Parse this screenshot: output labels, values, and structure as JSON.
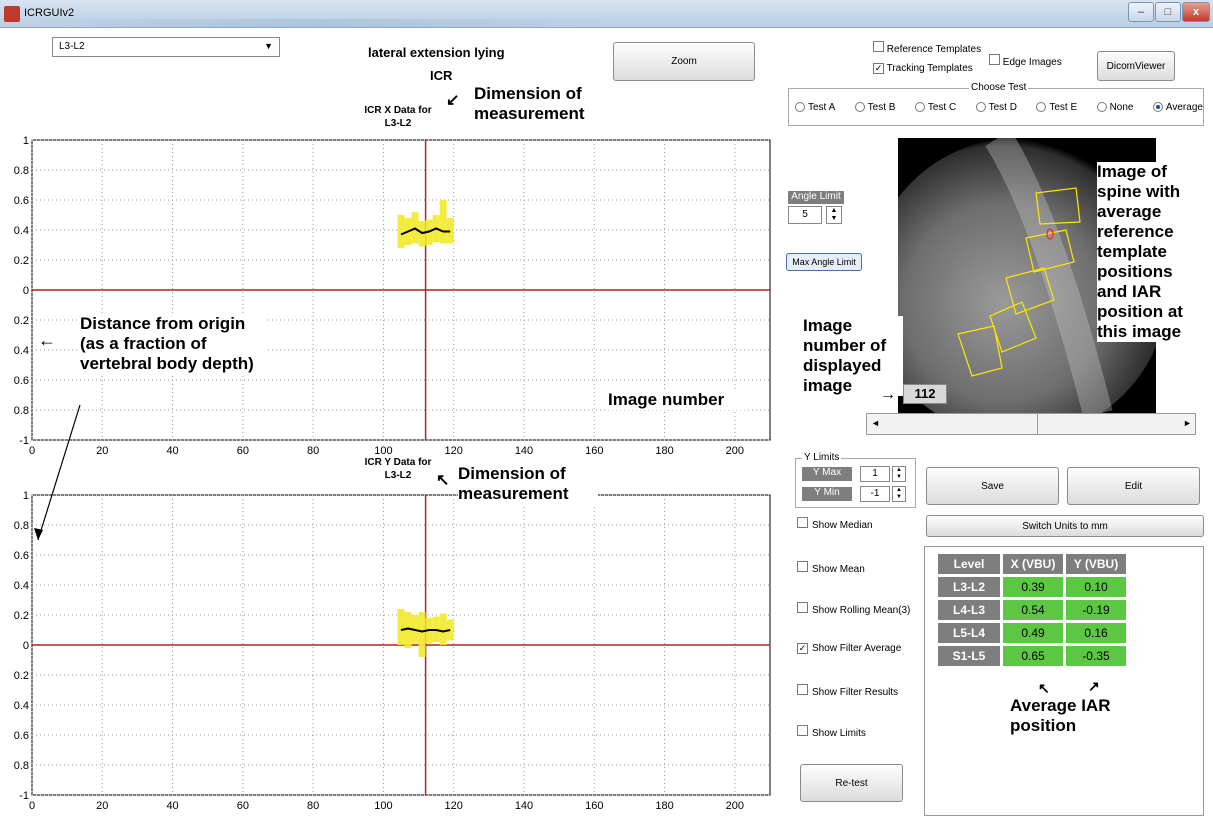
{
  "window": {
    "title": "ICRGUIv2"
  },
  "level_select": {
    "value": "L3-L2"
  },
  "header": {
    "title": "lateral extension lying",
    "subtitle": "ICR"
  },
  "zoom_button": {
    "label": "Zoom"
  },
  "checkboxes": {
    "reference_templates": {
      "label": "Reference Templates",
      "checked": false
    },
    "tracking_templates": {
      "label": "Tracking Templates",
      "checked": true
    },
    "edge_images": {
      "label": "Edge Images",
      "checked": false
    }
  },
  "dicom_viewer_button": {
    "label": "DicomViewer"
  },
  "choose_test": {
    "caption": "Choose Test",
    "options": [
      "Test A",
      "Test B",
      "Test C",
      "Test D",
      "Test E",
      "None",
      "Average"
    ],
    "selected": "Average"
  },
  "angle_limit": {
    "label": "Angle Limit",
    "value": "5",
    "max_button": "Max Angle Limit"
  },
  "image_number": {
    "value": "112"
  },
  "y_limits": {
    "caption": "Y Limits",
    "max_label": "Y Max",
    "max_value": "1",
    "min_label": "Y Min",
    "min_value": "-1"
  },
  "buttons": {
    "save": "Save",
    "edit": "Edit",
    "switch_units": "Switch Units to mm",
    "retest": "Re-test"
  },
  "show_options": [
    {
      "label": "Show Median",
      "checked": false
    },
    {
      "label": "Show Mean",
      "checked": false
    },
    {
      "label": "Show Rolling Mean(3)",
      "checked": false
    },
    {
      "label": "Show Filter Average",
      "checked": true
    },
    {
      "label": "Show Filter Results",
      "checked": false
    },
    {
      "label": "Show Limits",
      "checked": false
    }
  ],
  "results_table": {
    "headers": [
      "Level",
      "X (VBU)",
      "Y (VBU)"
    ],
    "rows": [
      [
        "L3-L2",
        "0.39",
        "0.10"
      ],
      [
        "L4-L3",
        "0.54",
        "-0.19"
      ],
      [
        "L5-L4",
        "0.49",
        "0.16"
      ],
      [
        "S1-L5",
        "0.65",
        "-0.35"
      ]
    ]
  },
  "annotations": {
    "dimension_top": "Dimension of measurement",
    "dimension_bottom": "Dimension of measurement",
    "distance": "Distance from origin (as a fraction of vertebral body depth)",
    "image_number": "Image number",
    "image_number_displayed": "Image number of displayed image",
    "spine_image": "Image of spine with average reference template positions and IAR position at this image",
    "average_iar": "Average IAR position"
  },
  "colors": {
    "axis_line": "#b22222",
    "band": "#f2ea2a",
    "curve": "#000000",
    "cell_green": "#5cc742"
  },
  "chart_data": [
    {
      "type": "line",
      "title": "ICR X Data for L3-L2",
      "xlim": [
        0,
        210
      ],
      "ylim": [
        -1,
        1
      ],
      "xticks": [
        0,
        20,
        40,
        60,
        80,
        100,
        120,
        140,
        160,
        180,
        200
      ],
      "yticks": [
        -1,
        -0.8,
        -0.6,
        -0.4,
        -0.2,
        0,
        0.2,
        0.4,
        0.6,
        0.8,
        1
      ],
      "ytick_labels": [
        "-1",
        "0.8",
        "0.6",
        "0.4",
        "0.2",
        "0",
        "0.2",
        "0.4",
        "0.6",
        "0.8",
        "1"
      ],
      "grid": true,
      "current_image": 112,
      "series": [
        {
          "kind": "mean",
          "x": [
            105,
            107,
            109,
            111,
            113,
            115,
            117,
            119
          ],
          "y": [
            0.37,
            0.39,
            0.41,
            0.38,
            0.39,
            0.41,
            0.39,
            0.39
          ]
        },
        {
          "kind": "band",
          "x": [
            105,
            107,
            109,
            111,
            113,
            115,
            117,
            119
          ],
          "lo": [
            0.28,
            0.3,
            0.31,
            0.29,
            0.3,
            0.32,
            0.31,
            0.31
          ],
          "hi": [
            0.5,
            0.48,
            0.52,
            0.46,
            0.47,
            0.5,
            0.6,
            0.48
          ]
        }
      ]
    },
    {
      "type": "line",
      "title": "ICR Y Data for L3-L2",
      "xlim": [
        0,
        210
      ],
      "ylim": [
        -1,
        1
      ],
      "xticks": [
        0,
        20,
        40,
        60,
        80,
        100,
        120,
        140,
        160,
        180,
        200
      ],
      "yticks": [
        -1,
        -0.8,
        -0.6,
        -0.4,
        -0.2,
        0,
        0.2,
        0.4,
        0.6,
        0.8,
        1
      ],
      "ytick_labels": [
        "-1",
        "0.8",
        "0.6",
        "0.4",
        "0.2",
        "0",
        "0.2",
        "0.4",
        "0.6",
        "0.8",
        "1"
      ],
      "grid": true,
      "current_image": 112,
      "series": [
        {
          "kind": "mean",
          "x": [
            105,
            107,
            109,
            111,
            113,
            115,
            117,
            119
          ],
          "y": [
            0.1,
            0.11,
            0.1,
            0.09,
            0.1,
            0.1,
            0.09,
            0.1
          ]
        },
        {
          "kind": "band",
          "x": [
            105,
            107,
            109,
            111,
            113,
            115,
            117,
            119
          ],
          "lo": [
            0.0,
            -0.02,
            0.01,
            -0.08,
            0.01,
            0.02,
            0.0,
            0.03
          ],
          "hi": [
            0.24,
            0.22,
            0.2,
            0.22,
            0.18,
            0.19,
            0.21,
            0.17
          ]
        }
      ]
    }
  ]
}
